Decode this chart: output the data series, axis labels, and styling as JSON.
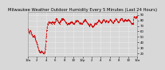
{
  "title": "Milwaukee Weather Outdoor Humidity Every 5 Minutes (Last 24 Hours)",
  "ylim": [
    15,
    95
  ],
  "yticks": [
    20,
    30,
    40,
    50,
    60,
    70,
    80,
    90
  ],
  "background_color": "#d8d8d8",
  "plot_bg_color": "#d8d8d8",
  "line_color": "#cc0000",
  "line_style": "--",
  "line_width": 0.6,
  "marker": "s",
  "marker_size": 0.8,
  "grid_color": "#ffffff",
  "title_fontsize": 3.8,
  "tick_fontsize": 2.8,
  "humidity_values": [
    65,
    63,
    61,
    59,
    57,
    59,
    60,
    62,
    61,
    59,
    57,
    55,
    53,
    51,
    50,
    51,
    52,
    53,
    51,
    50,
    48,
    46,
    44,
    42,
    40,
    38,
    36,
    33,
    30,
    28,
    26,
    25,
    24,
    23,
    22,
    22,
    23,
    24,
    25,
    24,
    23,
    22,
    21,
    20,
    20,
    21,
    22,
    23,
    28,
    34,
    42,
    52,
    62,
    67,
    72,
    74,
    76,
    77,
    78,
    76,
    75,
    76,
    77,
    76,
    75,
    74,
    76,
    77,
    78,
    77,
    76,
    75,
    74,
    76,
    77,
    78,
    80,
    82,
    84,
    82,
    81,
    80,
    79,
    78,
    77,
    76,
    75,
    74,
    76,
    78,
    80,
    81,
    82,
    83,
    82,
    81,
    82,
    83,
    82,
    81,
    80,
    79,
    78,
    77,
    76,
    75,
    74,
    73,
    72,
    73,
    74,
    75,
    74,
    73,
    74,
    75,
    76,
    77,
    76,
    77,
    78,
    77,
    76,
    75,
    74,
    73,
    74,
    75,
    76,
    77,
    78,
    79,
    80,
    79,
    78,
    79,
    80,
    79,
    78,
    77,
    76,
    75,
    74,
    75,
    76,
    75,
    74,
    73,
    74,
    75,
    76,
    77,
    78,
    79,
    80,
    81,
    82,
    81,
    80,
    79,
    78,
    77,
    76,
    75,
    74,
    73,
    72,
    71,
    70,
    72,
    73,
    74,
    73,
    72,
    71,
    70,
    69,
    68,
    69,
    70,
    71,
    72,
    73,
    74,
    75,
    74,
    73,
    74,
    75,
    76,
    77,
    78,
    79,
    80,
    81,
    80,
    79,
    78,
    77,
    76,
    75,
    76,
    77,
    78,
    79,
    80,
    81,
    82,
    81,
    80,
    79,
    78,
    77,
    78,
    79,
    80,
    79,
    78,
    77,
    76,
    77,
    78,
    79,
    80,
    81,
    82,
    81,
    80,
    79,
    78,
    77,
    76,
    75,
    76,
    77,
    78,
    79,
    80,
    81,
    82,
    83,
    82,
    81,
    80,
    79,
    78,
    77,
    76,
    77,
    78,
    79,
    80,
    81,
    82,
    83,
    84,
    83,
    82,
    81,
    80,
    79,
    78,
    79,
    80,
    81,
    82,
    81,
    80,
    79,
    80,
    81,
    80,
    79,
    80,
    81,
    82,
    81,
    80,
    79,
    78,
    77,
    76,
    75,
    74,
    73,
    74,
    75,
    74,
    73,
    85,
    86,
    87,
    86,
    85,
    84,
    85,
    86,
    87,
    88,
    87
  ],
  "num_xticks": 13,
  "time_labels": [
    "12a",
    "2",
    "4",
    "6",
    "8",
    "10",
    "12p",
    "2",
    "4",
    "6",
    "8",
    "10",
    "12a"
  ]
}
